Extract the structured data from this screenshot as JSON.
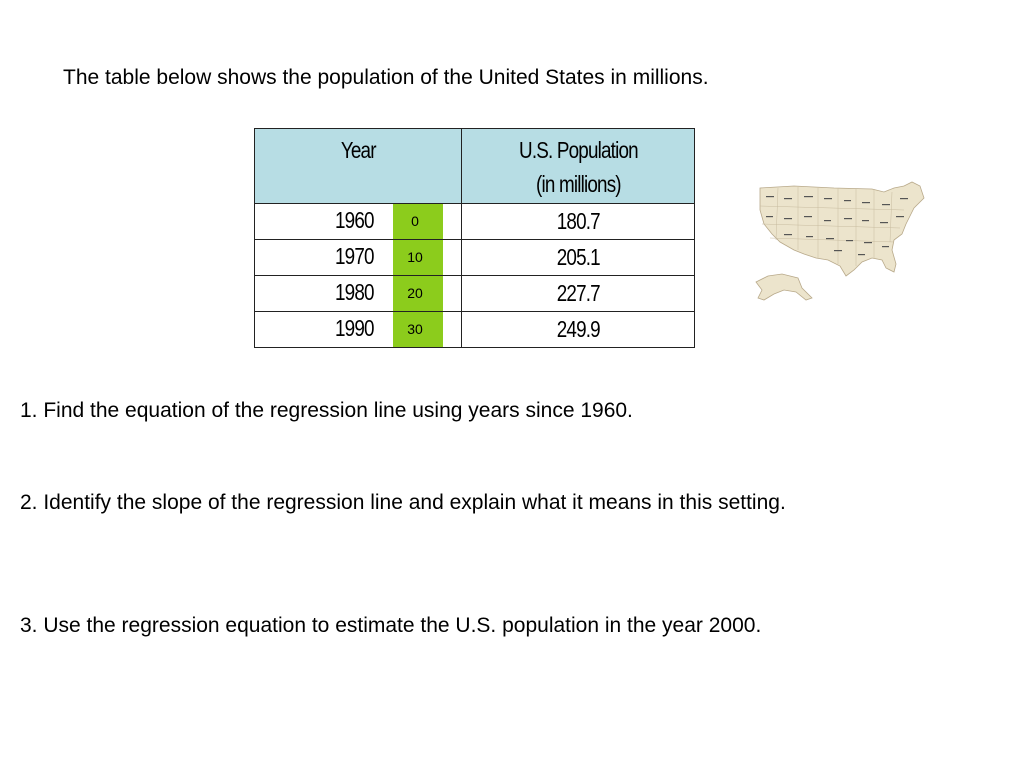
{
  "intro": "The table below shows the population of the United States in millions.",
  "table": {
    "header_year": "Year",
    "header_pop_line1": "U.S. Population",
    "header_pop_line2": "(in millions)",
    "rows": [
      {
        "year": "1960",
        "offset": "0",
        "population": "180.7"
      },
      {
        "year": "1970",
        "offset": "10",
        "population": "205.1"
      },
      {
        "year": "1980",
        "offset": "20",
        "population": "227.7"
      },
      {
        "year": "1990",
        "offset": "30",
        "population": "249.9"
      }
    ]
  },
  "questions": [
    "1.  Find the equation of the regression line using years since 1960.",
    "2.  Identify the slope of the regression line and explain what it means in this setting.",
    "3.  Use the regression equation to estimate the U.S. population in the year 2000."
  ],
  "colors": {
    "header_bg": "#b7dde4",
    "offset_bg": "#8ccc1c",
    "map_fill": "#ece4cc"
  }
}
